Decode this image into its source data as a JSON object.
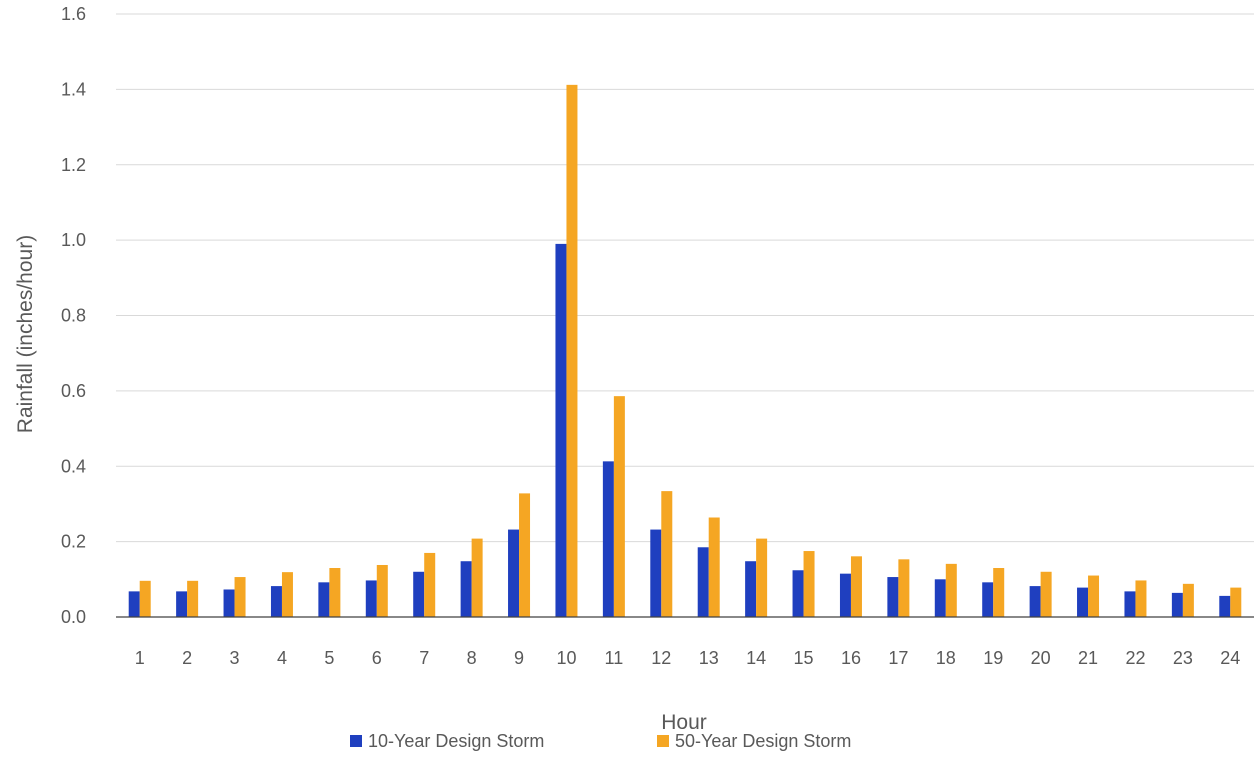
{
  "chart_data": {
    "type": "bar",
    "title": "",
    "xlabel": "Hour",
    "ylabel": "Rainfall (inches/hour)",
    "ylim": [
      0,
      1.6
    ],
    "yticks": [
      "0.0",
      "0.2",
      "0.4",
      "0.6",
      "0.8",
      "1.0",
      "1.2",
      "1.4",
      "1.6"
    ],
    "grid": true,
    "legend_position": "bottom",
    "categories": [
      "1",
      "2",
      "3",
      "4",
      "5",
      "6",
      "7",
      "8",
      "9",
      "10",
      "11",
      "12",
      "13",
      "14",
      "15",
      "16",
      "17",
      "18",
      "19",
      "20",
      "21",
      "22",
      "23",
      "24"
    ],
    "series": [
      {
        "name": "10-Year Design Storm",
        "color": "#1f3fbf",
        "values": [
          0.068,
          0.068,
          0.073,
          0.082,
          0.092,
          0.097,
          0.12,
          0.148,
          0.232,
          0.99,
          0.413,
          0.232,
          0.185,
          0.148,
          0.124,
          0.115,
          0.106,
          0.1,
          0.092,
          0.082,
          0.078,
          0.068,
          0.064,
          0.056
        ]
      },
      {
        "name": "50-Year Design Storm",
        "color": "#f5a623",
        "values": [
          0.096,
          0.096,
          0.106,
          0.119,
          0.13,
          0.138,
          0.17,
          0.208,
          0.328,
          1.412,
          0.586,
          0.334,
          0.264,
          0.208,
          0.175,
          0.161,
          0.153,
          0.141,
          0.13,
          0.12,
          0.11,
          0.097,
          0.088,
          0.078
        ]
      }
    ]
  }
}
